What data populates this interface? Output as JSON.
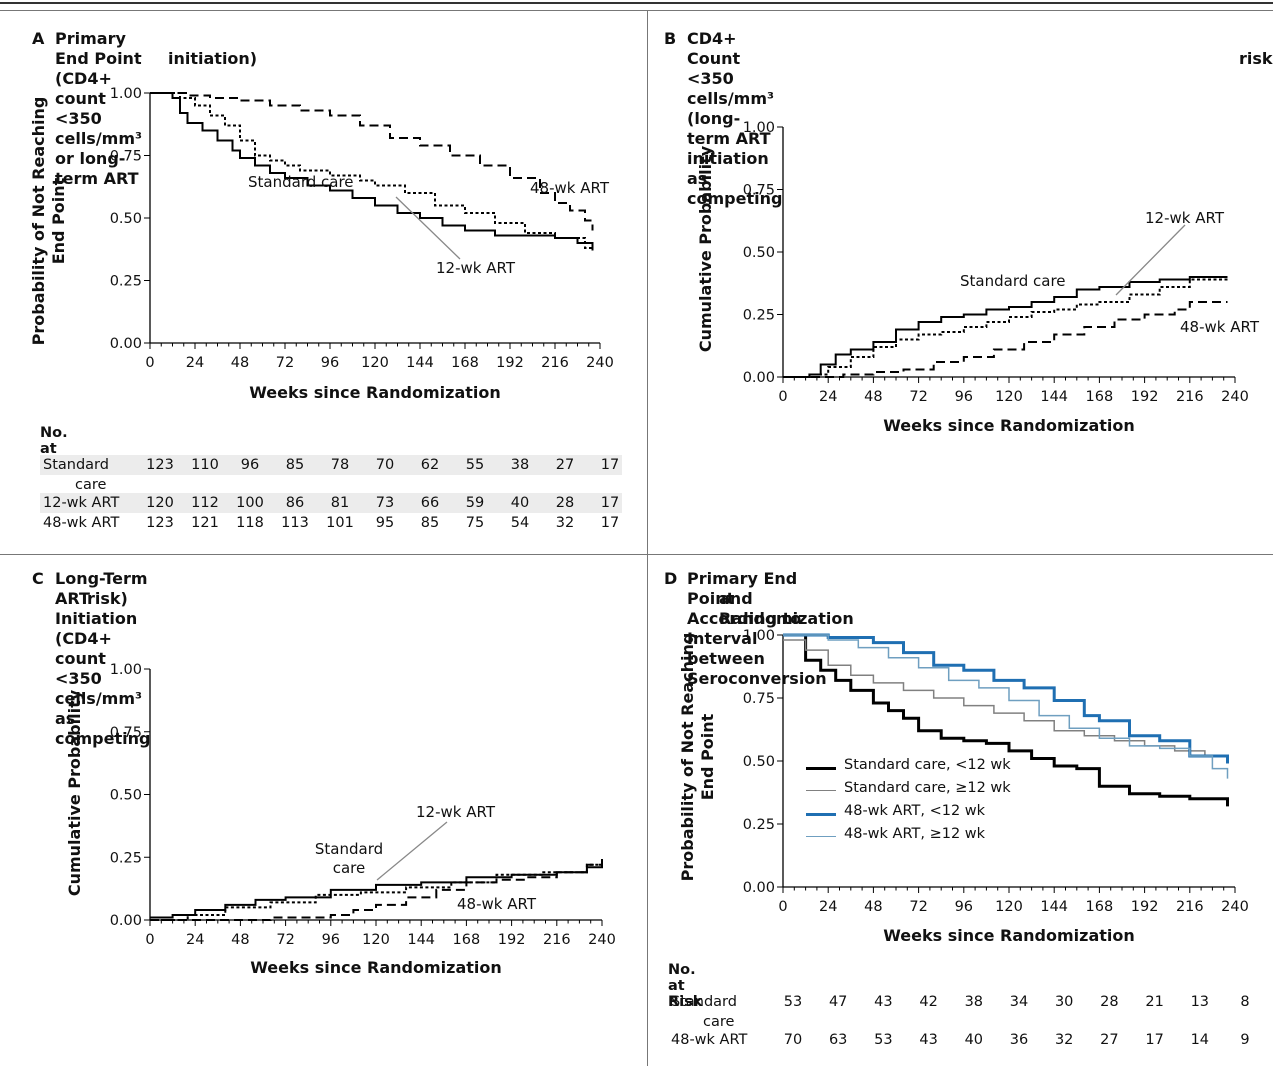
{
  "panels": {
    "A": {
      "letter": "A",
      "title_lines": [
        "Primary End Point (CD4+ count <350 cells/mm³ or long-term ART",
        "initiation)"
      ]
    },
    "B": {
      "letter": "B",
      "title_lines": [
        "CD4+ Count <350 cells/mm³ (long-term ART initiation as competing",
        "risk)"
      ]
    },
    "C": {
      "letter": "C",
      "title_lines": [
        "Long-Term ART Initiation (CD4+ count <350 cells/mm³ as competing",
        "risk)"
      ]
    },
    "D": {
      "letter": "D",
      "title_lines": [
        "Primary End Point According to Interval between Seroconversion",
        "and Randomization"
      ]
    }
  },
  "risk_tables": {
    "A": {
      "header": "No. at Risk",
      "rows": [
        {
          "label": "Standard",
          "label2": "care",
          "values": [
            123,
            110,
            96,
            85,
            78,
            70,
            62,
            55,
            38,
            27,
            17
          ]
        },
        {
          "label": "12-wk ART",
          "values": [
            120,
            112,
            100,
            86,
            81,
            73,
            66,
            59,
            40,
            28,
            17
          ]
        },
        {
          "label": "48-wk ART",
          "values": [
            123,
            121,
            118,
            113,
            101,
            95,
            85,
            75,
            54,
            32,
            17
          ]
        }
      ]
    },
    "D": {
      "header": "No. at Risk",
      "rows": [
        {
          "label": "Standard",
          "label2": "care",
          "values": [
            53,
            47,
            43,
            42,
            38,
            34,
            30,
            28,
            21,
            13,
            8
          ]
        },
        {
          "label": "48-wk ART",
          "values": [
            70,
            63,
            53,
            43,
            40,
            36,
            32,
            27,
            17,
            14,
            9
          ]
        }
      ]
    }
  },
  "chart_data": [
    {
      "id": "A",
      "type": "line",
      "title": "Primary End Point (CD4+ count <350 cells/mm³ or long-term ART initiation)",
      "xlabel": "Weeks since Randomization",
      "ylabel": "Probability of Not Reaching End Point",
      "xlim": [
        0,
        240
      ],
      "ylim": [
        0,
        1
      ],
      "xticks": [
        "0",
        "24",
        "48",
        "72",
        "96",
        "120",
        "144",
        "168",
        "192",
        "216",
        "240"
      ],
      "yticks": [
        "0.00",
        "0.25",
        "0.50",
        "0.75",
        "1.00"
      ],
      "annotations": [
        "48-wk ART",
        "Standard care",
        "12-wk ART"
      ],
      "series": [
        {
          "name": "Standard care",
          "style": "solid",
          "color": "#000000",
          "x": [
            0,
            12,
            16,
            20,
            28,
            36,
            44,
            48,
            56,
            64,
            72,
            84,
            96,
            108,
            120,
            132,
            144,
            156,
            168,
            184,
            200,
            216,
            228,
            236
          ],
          "y": [
            1.0,
            0.98,
            0.92,
            0.88,
            0.85,
            0.81,
            0.77,
            0.74,
            0.71,
            0.68,
            0.66,
            0.63,
            0.61,
            0.58,
            0.55,
            0.52,
            0.5,
            0.47,
            0.45,
            0.43,
            0.43,
            0.42,
            0.4,
            0.37
          ]
        },
        {
          "name": "12-wk ART",
          "style": "dotted",
          "color": "#000000",
          "x": [
            0,
            16,
            24,
            32,
            40,
            48,
            56,
            64,
            72,
            80,
            96,
            112,
            120,
            136,
            152,
            168,
            184,
            200,
            216,
            232,
            236
          ],
          "y": [
            1.0,
            0.98,
            0.95,
            0.91,
            0.87,
            0.81,
            0.75,
            0.73,
            0.71,
            0.69,
            0.67,
            0.65,
            0.63,
            0.6,
            0.55,
            0.52,
            0.48,
            0.44,
            0.42,
            0.38,
            0.37
          ]
        },
        {
          "name": "48-wk ART",
          "style": "dashed",
          "color": "#000000",
          "x": [
            0,
            20,
            32,
            48,
            64,
            80,
            96,
            112,
            128,
            144,
            160,
            176,
            192,
            208,
            216,
            224,
            232,
            236
          ],
          "y": [
            1.0,
            0.99,
            0.98,
            0.97,
            0.95,
            0.93,
            0.91,
            0.87,
            0.82,
            0.79,
            0.75,
            0.71,
            0.66,
            0.6,
            0.56,
            0.53,
            0.49,
            0.45
          ]
        }
      ]
    },
    {
      "id": "B",
      "type": "line",
      "title": "CD4+ Count <350 cells/mm³ (long-term ART initiation as competing risk)",
      "xlabel": "Weeks since Randomization",
      "ylabel": "Cumulative Probability",
      "xlim": [
        0,
        240
      ],
      "ylim": [
        0,
        1
      ],
      "xticks": [
        "0",
        "24",
        "48",
        "72",
        "96",
        "120",
        "144",
        "168",
        "192",
        "216",
        "240"
      ],
      "yticks": [
        "0.00",
        "0.25",
        "0.50",
        "0.75",
        "1.00"
      ],
      "annotations": [
        "12-wk ART",
        "Standard care",
        "48-wk ART"
      ],
      "series": [
        {
          "name": "Standard care",
          "style": "solid",
          "color": "#000000",
          "x": [
            0,
            14,
            20,
            28,
            36,
            48,
            60,
            72,
            84,
            96,
            108,
            120,
            132,
            144,
            156,
            168,
            184,
            200,
            216,
            236
          ],
          "y": [
            0.0,
            0.01,
            0.05,
            0.09,
            0.11,
            0.14,
            0.19,
            0.22,
            0.24,
            0.25,
            0.27,
            0.28,
            0.3,
            0.32,
            0.35,
            0.36,
            0.38,
            0.39,
            0.4,
            0.4
          ]
        },
        {
          "name": "12-wk ART",
          "style": "dotted",
          "color": "#000000",
          "x": [
            0,
            16,
            24,
            36,
            48,
            60,
            72,
            84,
            96,
            108,
            120,
            132,
            144,
            156,
            168,
            184,
            200,
            216,
            236
          ],
          "y": [
            0.0,
            0.01,
            0.04,
            0.08,
            0.12,
            0.15,
            0.17,
            0.18,
            0.2,
            0.22,
            0.24,
            0.26,
            0.27,
            0.29,
            0.3,
            0.33,
            0.36,
            0.39,
            0.4
          ]
        },
        {
          "name": "48-wk ART",
          "style": "dashed",
          "color": "#000000",
          "x": [
            0,
            24,
            32,
            48,
            64,
            80,
            96,
            112,
            128,
            144,
            160,
            176,
            192,
            208,
            216,
            236
          ],
          "y": [
            0.0,
            0.0,
            0.01,
            0.02,
            0.03,
            0.06,
            0.08,
            0.11,
            0.14,
            0.17,
            0.2,
            0.23,
            0.25,
            0.27,
            0.3,
            0.3
          ]
        }
      ]
    },
    {
      "id": "C",
      "type": "line",
      "title": "Long-Term ART Initiation (CD4+ count <350 cells/mm³ as competing risk)",
      "xlabel": "Weeks since Randomization",
      "ylabel": "Cumulative Probability",
      "xlim": [
        0,
        240
      ],
      "ylim": [
        0,
        1
      ],
      "xticks": [
        "0",
        "24",
        "48",
        "72",
        "96",
        "120",
        "144",
        "168",
        "192",
        "216",
        "240"
      ],
      "yticks": [
        "0.00",
        "0.25",
        "0.50",
        "0.75",
        "1.00"
      ],
      "annotations": [
        "12-wk ART",
        "Standard",
        "care",
        "48-wk ART"
      ],
      "series": [
        {
          "name": "Standard care",
          "style": "solid",
          "color": "#000000",
          "x": [
            0,
            12,
            24,
            40,
            56,
            72,
            96,
            120,
            144,
            168,
            192,
            216,
            232,
            240
          ],
          "y": [
            0.01,
            0.02,
            0.04,
            0.06,
            0.08,
            0.09,
            0.12,
            0.14,
            0.15,
            0.17,
            0.18,
            0.19,
            0.21,
            0.23
          ]
        },
        {
          "name": "12-wk ART",
          "style": "dotted",
          "color": "#000000",
          "x": [
            0,
            20,
            40,
            64,
            88,
            112,
            136,
            160,
            184,
            208,
            232,
            240
          ],
          "y": [
            0.0,
            0.02,
            0.05,
            0.07,
            0.1,
            0.11,
            0.13,
            0.15,
            0.18,
            0.19,
            0.22,
            0.24
          ]
        },
        {
          "name": "48-wk ART",
          "style": "dashed",
          "color": "#000000",
          "x": [
            0,
            48,
            64,
            80,
            96,
            108,
            120,
            136,
            152,
            168,
            184,
            200,
            216,
            232,
            240
          ],
          "y": [
            0.0,
            0.0,
            0.01,
            0.01,
            0.02,
            0.04,
            0.06,
            0.09,
            0.12,
            0.15,
            0.16,
            0.17,
            0.19,
            0.22,
            0.25
          ]
        }
      ]
    },
    {
      "id": "D",
      "type": "line",
      "title": "Primary End Point According to Interval between Seroconversion and Randomization",
      "xlabel": "Weeks since Randomization",
      "ylabel": "Probability of Not Reaching End Point",
      "xlim": [
        0,
        240
      ],
      "ylim": [
        0,
        1
      ],
      "xticks": [
        "0",
        "24",
        "48",
        "72",
        "96",
        "120",
        "144",
        "168",
        "192",
        "216",
        "240"
      ],
      "yticks": [
        "0.00",
        "0.25",
        "0.50",
        "0.75",
        "1.00"
      ],
      "legend_position": "bottom-left",
      "series": [
        {
          "name": "Standard care, <12 wk",
          "style": "solid",
          "color": "#000000",
          "width": 3,
          "x": [
            0,
            12,
            20,
            28,
            36,
            48,
            56,
            64,
            72,
            84,
            96,
            108,
            120,
            132,
            144,
            156,
            168,
            184,
            200,
            216,
            232,
            236
          ],
          "y": [
            1.0,
            0.9,
            0.86,
            0.82,
            0.78,
            0.73,
            0.7,
            0.67,
            0.62,
            0.59,
            0.58,
            0.57,
            0.54,
            0.51,
            0.48,
            0.47,
            0.4,
            0.37,
            0.36,
            0.35,
            0.35,
            0.32
          ]
        },
        {
          "name": "Standard care, ≥12 wk",
          "style": "solid",
          "color": "#808080",
          "width": 1.5,
          "x": [
            0,
            12,
            24,
            36,
            48,
            64,
            80,
            96,
            112,
            128,
            144,
            160,
            176,
            192,
            208,
            224,
            236
          ],
          "y": [
            0.98,
            0.94,
            0.88,
            0.84,
            0.81,
            0.78,
            0.75,
            0.72,
            0.69,
            0.66,
            0.62,
            0.6,
            0.58,
            0.56,
            0.54,
            0.52,
            0.49
          ]
        },
        {
          "name": "48-wk ART, <12 wk",
          "style": "solid",
          "color": "#1f6fb2",
          "width": 3,
          "x": [
            0,
            24,
            48,
            64,
            80,
            96,
            112,
            128,
            144,
            160,
            168,
            184,
            200,
            216,
            236
          ],
          "y": [
            1.0,
            0.99,
            0.97,
            0.93,
            0.88,
            0.86,
            0.82,
            0.79,
            0.74,
            0.68,
            0.66,
            0.6,
            0.58,
            0.52,
            0.49
          ]
        },
        {
          "name": "48-wk ART, ≥12 wk",
          "style": "solid",
          "color": "#6f9fc0",
          "width": 1.5,
          "x": [
            0,
            24,
            40,
            56,
            72,
            88,
            104,
            120,
            136,
            152,
            168,
            184,
            200,
            216,
            228,
            236
          ],
          "y": [
            1.0,
            0.98,
            0.95,
            0.91,
            0.87,
            0.82,
            0.79,
            0.74,
            0.68,
            0.63,
            0.59,
            0.56,
            0.55,
            0.52,
            0.47,
            0.43
          ]
        }
      ]
    }
  ]
}
